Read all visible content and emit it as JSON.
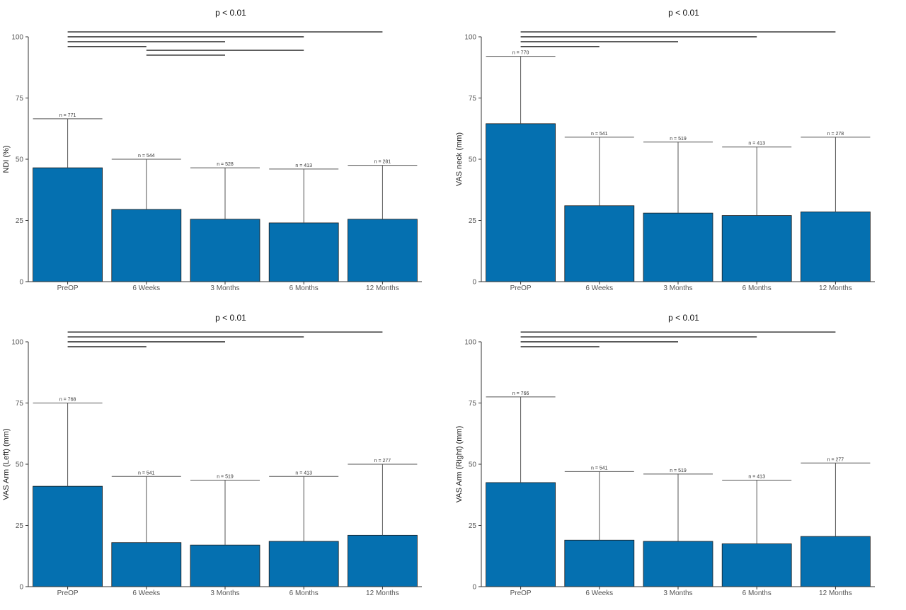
{
  "bar_color": "#0570b0",
  "chart_data": [
    {
      "type": "bar",
      "title": "p < 0.01",
      "ylabel": "NDI (%)",
      "ylim": [
        0,
        100
      ],
      "yticks": [
        0,
        25,
        50,
        75,
        100
      ],
      "categories": [
        "PreOP",
        "6 Weeks",
        "3 Months",
        "6 Months",
        "12 Months"
      ],
      "values": [
        46.5,
        29.5,
        25.5,
        24,
        25.5
      ],
      "error_upper": [
        66.5,
        50,
        46.5,
        46,
        47.5
      ],
      "n_labels": [
        "n = 771",
        "n = 544",
        "n = 528",
        "n = 413",
        "n = 281"
      ],
      "significance": [
        {
          "from": 0,
          "to": 4,
          "y": 102
        },
        {
          "from": 0,
          "to": 3,
          "y": 100
        },
        {
          "from": 0,
          "to": 2,
          "y": 98
        },
        {
          "from": 0,
          "to": 1,
          "y": 96
        },
        {
          "from": 1,
          "to": 3,
          "y": 94.5
        },
        {
          "from": 1,
          "to": 2,
          "y": 92.5
        }
      ]
    },
    {
      "type": "bar",
      "title": "p < 0.01",
      "ylabel": "VAS neck (mm)",
      "ylim": [
        0,
        100
      ],
      "yticks": [
        0,
        25,
        50,
        75,
        100
      ],
      "categories": [
        "PreOP",
        "6 Weeks",
        "3 Months",
        "6 Months",
        "12 Months"
      ],
      "values": [
        64.5,
        31,
        28,
        27,
        28.5
      ],
      "error_upper": [
        92,
        59,
        57,
        55,
        59
      ],
      "n_labels": [
        "n = 770",
        "n = 541",
        "n = 519",
        "n = 413",
        "n = 278"
      ],
      "significance": [
        {
          "from": 0,
          "to": 4,
          "y": 102
        },
        {
          "from": 0,
          "to": 3,
          "y": 100
        },
        {
          "from": 0,
          "to": 2,
          "y": 98
        },
        {
          "from": 0,
          "to": 1,
          "y": 96
        }
      ]
    },
    {
      "type": "bar",
      "title": "p < 0.01",
      "ylabel": "VAS Arm (Left) (mm)",
      "ylim": [
        0,
        100
      ],
      "yticks": [
        0,
        25,
        50,
        75,
        100
      ],
      "categories": [
        "PreOP",
        "6 Weeks",
        "3 Months",
        "6 Months",
        "12 Months"
      ],
      "values": [
        41,
        18,
        17,
        18.5,
        21
      ],
      "error_upper": [
        75,
        45,
        43.5,
        45,
        50
      ],
      "n_labels": [
        "n = 768",
        "n = 541",
        "n = 519",
        "n = 413",
        "n = 277"
      ],
      "significance": [
        {
          "from": 0,
          "to": 4,
          "y": 104
        },
        {
          "from": 0,
          "to": 3,
          "y": 102
        },
        {
          "from": 0,
          "to": 2,
          "y": 100
        },
        {
          "from": 0,
          "to": 1,
          "y": 98
        }
      ]
    },
    {
      "type": "bar",
      "title": "p < 0.01",
      "ylabel": "VAS Arm (Right) (mm)",
      "ylim": [
        0,
        100
      ],
      "yticks": [
        0,
        25,
        50,
        75,
        100
      ],
      "categories": [
        "PreOP",
        "6 Weeks",
        "3 Months",
        "6 Months",
        "12 Months"
      ],
      "values": [
        42.5,
        19,
        18.5,
        17.5,
        20.5
      ],
      "error_upper": [
        77.5,
        47,
        46,
        43.5,
        50.5
      ],
      "n_labels": [
        "n = 766",
        "n = 541",
        "n = 519",
        "n = 413",
        "n = 277"
      ],
      "significance": [
        {
          "from": 0,
          "to": 4,
          "y": 104
        },
        {
          "from": 0,
          "to": 3,
          "y": 102
        },
        {
          "from": 0,
          "to": 2,
          "y": 100
        },
        {
          "from": 0,
          "to": 1,
          "y": 98
        }
      ]
    }
  ]
}
